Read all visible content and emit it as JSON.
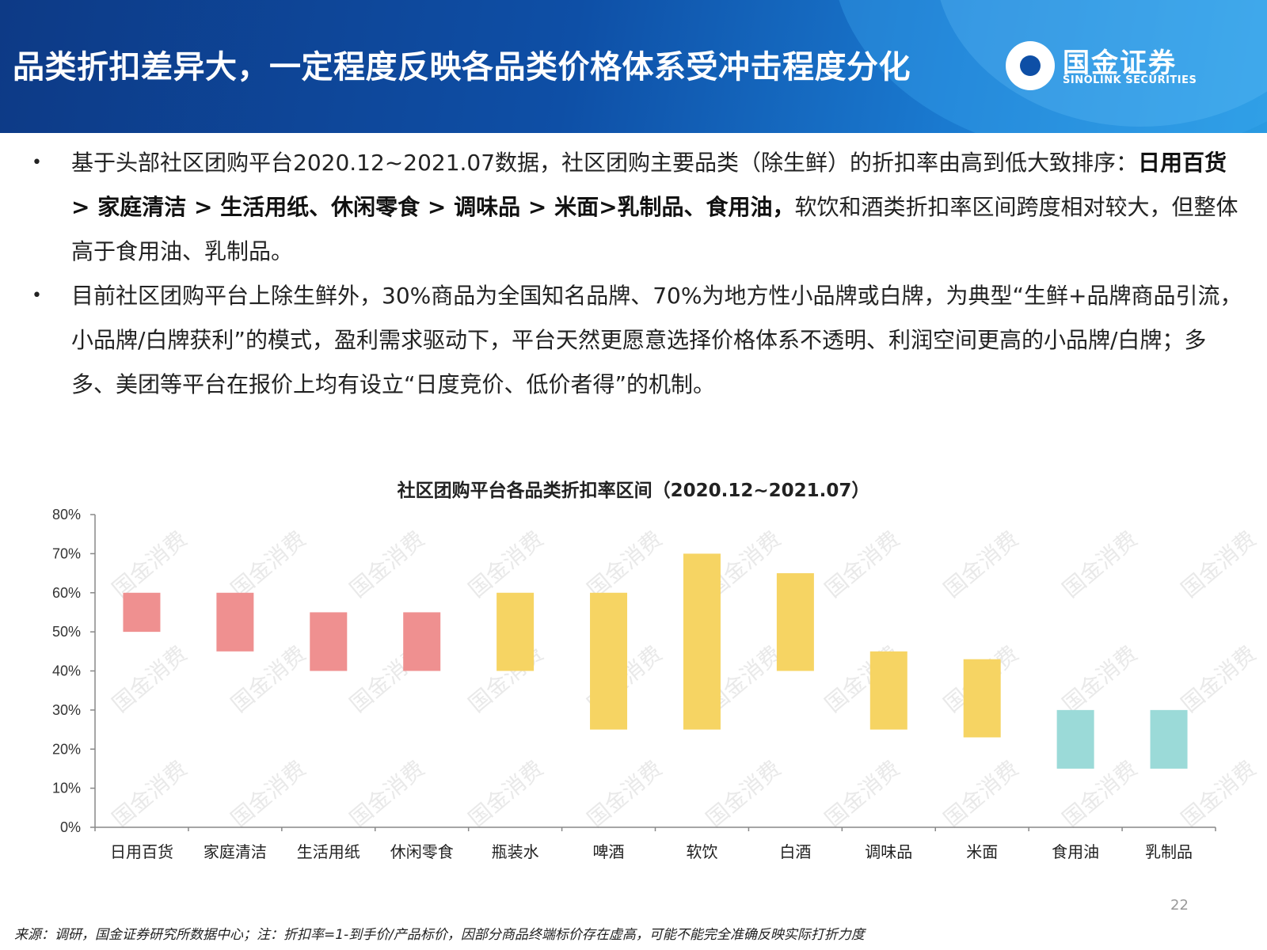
{
  "header": {
    "title": "品类折扣差异大，一定程度反映各品类价格体系受冲击程度分化",
    "logo_cn": "国金证券",
    "logo_en": "SINOLINK SECURITIES"
  },
  "bullets": [
    {
      "line1": "基于头部社区团购平台2020.12~2021.07数据，社区团购主要品类（除生鲜）的折扣率由高到低大致排序：",
      "bold": "日用百货 > 家庭清洁 > 生活用纸、休闲零食 > 调味品 > 米面>乳制品、食用油，",
      "rest": "软饮和酒类折扣率区间跨度相对较大，但整体高于食用油、乳制品。"
    },
    {
      "text": "目前社区团购平台上除生鲜外，30%商品为全国知名品牌、70%为地方性小品牌或白牌，为典型“生鲜+品牌商品引流，小品牌/白牌获利”的模式，盈利需求驱动下，平台天然更愿意选择价格体系不透明、利润空间更高的小品牌/白牌；多多、美团等平台在报价上均有设立“日度竞价、低价者得”的机制。"
    }
  ],
  "chart_data": {
    "type": "bar",
    "subtype": "floating-range",
    "title": "社区团购平台各品类折扣率区间（2020.12~2021.07）",
    "ylim": [
      0,
      80
    ],
    "yticks": [
      "0%",
      "10%",
      "20%",
      "30%",
      "40%",
      "50%",
      "60%",
      "70%",
      "80%"
    ],
    "categories": [
      "日用百货",
      "家庭清洁",
      "生活用纸",
      "休闲零食",
      "瓶装水",
      "啤酒",
      "软饮",
      "白酒",
      "调味品",
      "米面",
      "食用油",
      "乳制品"
    ],
    "low": [
      50,
      45,
      40,
      40,
      40,
      25,
      25,
      40,
      25,
      23,
      15,
      15
    ],
    "high": [
      60,
      60,
      55,
      55,
      60,
      60,
      70,
      65,
      45,
      43,
      30,
      30
    ],
    "colors": [
      "#ef9090",
      "#ef9090",
      "#ef9090",
      "#ef9090",
      "#f6d463",
      "#f6d463",
      "#f6d463",
      "#f6d463",
      "#f6d463",
      "#f6d463",
      "#9bdad8",
      "#9bdad8"
    ],
    "watermark": "国金消费"
  },
  "footer": {
    "source": "来源：调研，国金证券研究所数据中心；注：折扣率=1-到手价/产品标价，因部分商品终端标价存在虚高，可能不能完全准确反映实际打折力度",
    "page": "22"
  }
}
